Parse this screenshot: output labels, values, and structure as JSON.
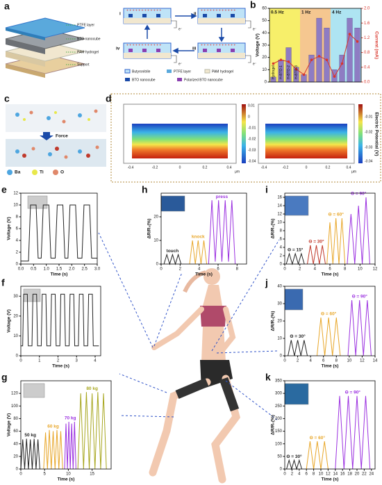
{
  "panels": {
    "a": {
      "panel": "a",
      "layers": [
        "PTFE layer",
        "BTO nanocube",
        "PAM hydrogel",
        "Support"
      ],
      "steps": [
        "i",
        "ii",
        "iii",
        "iv"
      ],
      "electron": "e⁻",
      "legend": [
        "Butyronitrile",
        "PTFE layer",
        "PAM hydrogel",
        "BTO nanocube",
        "Polarized BTO nanocube"
      ]
    },
    "c": {
      "panel": "c",
      "arrow": "Force",
      "legend": [
        "Ba",
        "Ti",
        "O"
      ]
    },
    "d": {
      "panel": "d",
      "colorbar_label": "Electric Potential (V)",
      "colorbar_ticks": [
        "0.01",
        "0",
        "-0.01",
        "-0.02",
        "-0.03",
        "-0.04"
      ],
      "x_ticks": [
        "-0.4",
        "-0.2",
        "0",
        "0.2",
        "0.4"
      ],
      "unit": "μm"
    }
  },
  "chart_data": [
    {
      "panel": "b",
      "type": "bar",
      "categories": [
        "Hydrogel",
        "H-BTO-1",
        "H-BTO-2",
        "H-BTO-3",
        null,
        null,
        null,
        null,
        null,
        null,
        null,
        null
      ],
      "regions": [
        {
          "label": "0.5 Hz",
          "color": "#f7ef6a"
        },
        {
          "label": "1 Hz",
          "color": "#f5c790"
        },
        {
          "label": "4 Hz",
          "color": "#aee4f2"
        }
      ],
      "series": [
        {
          "color": "#8e7cc3",
          "values": [
            4,
            18,
            28,
            12,
            6,
            22,
            52,
            44,
            10,
            22,
            52,
            44
          ]
        },
        {
          "color": "#d9352b",
          "axis": "y2",
          "values": [
            0.5,
            0.6,
            0.55,
            0.35,
            0.2,
            0.6,
            0.7,
            0.6,
            0.15,
            0.5,
            1.3,
            1.1
          ]
        }
      ],
      "ylabel": "Voltage (V)",
      "y2label": "Current (mA)",
      "ylim": [
        0,
        60
      ],
      "yticks": [
        0,
        10,
        20,
        30,
        40,
        50,
        60
      ],
      "y2lim": [
        0,
        2
      ],
      "y2ticks": [
        {
          "value": 0,
          "label": "0.0"
        },
        {
          "value": 0.4,
          "label": "0.4"
        },
        {
          "value": 0.8,
          "label": "0.8"
        },
        {
          "value": 1.2,
          "label": "1.2"
        },
        {
          "value": 1.6,
          "label": "1.6"
        },
        {
          "value": 2,
          "label": "2.0"
        }
      ]
    },
    {
      "panel": "e",
      "type": "line",
      "xlabel": "Time (s)",
      "ylabel": "Voltage (V)",
      "xlim": [
        0,
        3
      ],
      "ylim": [
        0,
        12
      ],
      "xticks": [
        {
          "value": 0,
          "label": "0.0"
        },
        {
          "value": 0.5,
          "label": "0.5"
        },
        {
          "value": 1,
          "label": "1.0"
        },
        {
          "value": 1.5,
          "label": "1.5"
        },
        {
          "value": 2,
          "label": "2.0"
        },
        {
          "value": 2.5,
          "label": "2.5"
        },
        {
          "value": 3,
          "label": "3.0"
        }
      ],
      "yticks": [
        0,
        2,
        4,
        6,
        8,
        10,
        12
      ],
      "series": [
        {
          "color": "#222222",
          "x": [
            0,
            0.3,
            0.38,
            0.6,
            0.68,
            0.8,
            0.88,
            1.1,
            1.18,
            1.35,
            1.43,
            1.65,
            1.73,
            1.85,
            1.93,
            2.15,
            2.23,
            2.4,
            2.48,
            2.7,
            2.78,
            3.0
          ],
          "values": [
            0.5,
            0.5,
            10,
            10,
            1,
            1,
            10,
            10,
            1,
            1,
            10,
            10,
            1,
            1,
            10,
            10,
            1,
            1,
            10,
            10,
            1,
            1
          ]
        }
      ]
    },
    {
      "panel": "f",
      "type": "line",
      "xlabel": "Time (s)",
      "ylabel": "Voltage (V)",
      "xlim": [
        0,
        4.3
      ],
      "ylim": [
        0,
        35
      ],
      "xticks": [
        0,
        1,
        2,
        3,
        4
      ],
      "yticks": [
        0,
        10,
        20,
        30
      ],
      "series": [
        {
          "color": "#222222",
          "x": [
            0,
            0.1,
            0.15,
            0.35,
            0.4,
            0.6,
            0.65,
            0.85,
            0.9,
            1.1,
            1.15,
            1.35,
            1.4,
            1.6,
            1.65,
            1.85,
            1.9,
            2.1,
            2.15,
            2.35,
            2.4,
            2.6,
            2.65,
            2.85,
            2.9,
            3.1,
            3.15,
            3.35,
            3.4,
            3.6,
            3.65,
            3.85,
            3.9,
            4.2
          ],
          "values": [
            5,
            5,
            31,
            31,
            5,
            5,
            31,
            31,
            5,
            5,
            31,
            31,
            5,
            5,
            31,
            31,
            5,
            5,
            31,
            31,
            5,
            5,
            31,
            31,
            5,
            5,
            31,
            31,
            5,
            5,
            31,
            31,
            5,
            5
          ]
        }
      ]
    },
    {
      "panel": "g",
      "type": "line",
      "xlabel": "Time (s)",
      "ylabel": "Voltage (V)",
      "xlim": [
        0,
        19
      ],
      "ylim": [
        0,
        140
      ],
      "xticks": [
        0,
        5,
        10,
        15
      ],
      "yticks": [
        0,
        20,
        40,
        60,
        80,
        100,
        120
      ],
      "series": [
        {
          "name": "50 kg",
          "color": "#222222",
          "x": [
            0,
            0.4,
            0.8,
            1.2,
            1.6,
            2.0,
            2.4,
            2.8,
            3.2,
            3.6,
            4.0
          ],
          "values": [
            0,
            47,
            0,
            48,
            0,
            47,
            0,
            48,
            0,
            47,
            0
          ]
        },
        {
          "name": "60 kg",
          "color": "#e8a628",
          "x": [
            4.8,
            5.2,
            5.6,
            6.0,
            6.4,
            6.8,
            7.2,
            7.6,
            8.0,
            8.4,
            8.8
          ],
          "values": [
            0,
            58,
            0,
            62,
            0,
            60,
            0,
            62,
            0,
            60,
            0
          ]
        },
        {
          "name": "70 kg",
          "color": "#9b30e0",
          "x": [
            9.2,
            9.5,
            9.8,
            10.1,
            10.4,
            10.7,
            11.0,
            11.3,
            11.6
          ],
          "values": [
            0,
            72,
            0,
            75,
            0,
            72,
            0,
            75,
            0
          ]
        },
        {
          "name": "80 kg",
          "color": "#a7a61e",
          "x": [
            12,
            12.6,
            13.2,
            13.8,
            14.4,
            15,
            15.6,
            16.2,
            16.8,
            17.4,
            18
          ],
          "values": [
            0,
            120,
            0,
            122,
            0,
            120,
            0,
            122,
            0,
            120,
            0
          ]
        }
      ]
    },
    {
      "panel": "h",
      "type": "line",
      "xlabel": "Time (s)",
      "ylabel": "ΔR/R₀(%)",
      "xlim": [
        0,
        9
      ],
      "ylim": [
        0,
        30
      ],
      "xticks": [
        0,
        2,
        4,
        6,
        8
      ],
      "yticks": [
        0,
        10,
        20
      ],
      "series": [
        {
          "name": "touch",
          "color": "#222222",
          "x": [
            0.3,
            0.6,
            0.9,
            1.2,
            1.5,
            1.8,
            2.1
          ],
          "values": [
            0,
            4,
            0,
            4,
            0,
            4,
            0
          ]
        },
        {
          "name": "knock",
          "color": "#e8a628",
          "x": [
            3.0,
            3.3,
            3.6,
            3.9,
            4.2,
            4.5,
            4.8
          ],
          "values": [
            0,
            10,
            0,
            10,
            0,
            10,
            0
          ]
        },
        {
          "name": "press",
          "color": "#9b30e0",
          "x": [
            5.0,
            5.35,
            5.7,
            6.05,
            6.4,
            6.75,
            7.1,
            7.45,
            7.8
          ],
          "values": [
            0,
            27,
            1,
            27,
            1,
            27,
            1,
            27,
            0
          ]
        }
      ]
    },
    {
      "panel": "i",
      "type": "line",
      "xlabel": "Time (s)",
      "ylabel": "ΔR/R₀(%)",
      "xlim": [
        0,
        12
      ],
      "ylim": [
        0,
        17
      ],
      "xticks": [
        0,
        2,
        4,
        6,
        8,
        10,
        12
      ],
      "yticks": [
        0,
        2,
        4,
        6,
        8,
        10,
        12,
        14,
        16
      ],
      "series": [
        {
          "name": "Θ = 15°",
          "color": "#222222",
          "x": [
            0.2,
            0.6,
            1.0,
            1.4,
            1.8,
            2.2,
            2.6
          ],
          "values": [
            0,
            2.5,
            0,
            2.5,
            0,
            2.5,
            0
          ]
        },
        {
          "name": "Θ = 30°",
          "color": "#c0392b",
          "x": [
            3.0,
            3.4,
            3.8,
            4.2,
            4.6,
            5.0,
            5.4
          ],
          "values": [
            0,
            4.5,
            0,
            4.5,
            0,
            4.5,
            0
          ]
        },
        {
          "name": "Θ = 60°",
          "color": "#e8a628",
          "x": [
            5.6,
            6.0,
            6.4,
            6.8,
            7.2,
            7.6,
            8.0
          ],
          "values": [
            0,
            10,
            0,
            11,
            0,
            11,
            0
          ]
        },
        {
          "name": "Θ = 90°",
          "color": "#9b30e0",
          "x": [
            8.3,
            8.8,
            9.3,
            9.8,
            10.3,
            10.8,
            11.3
          ],
          "values": [
            0,
            12,
            0,
            14,
            0,
            16,
            0
          ]
        }
      ]
    },
    {
      "panel": "j",
      "type": "line",
      "xlabel": "Time (s)",
      "ylabel": "ΔR/R₀(%)",
      "xlim": [
        0,
        14
      ],
      "ylim": [
        0,
        40
      ],
      "xticks": [
        0,
        2,
        4,
        6,
        8,
        10,
        12,
        14
      ],
      "yticks": [
        0,
        10,
        20,
        30,
        40
      ],
      "series": [
        {
          "name": "Θ = 30°",
          "color": "#222222",
          "x": [
            0.5,
            1.0,
            1.5,
            2.0,
            2.5,
            3.0,
            3.5
          ],
          "values": [
            0,
            9,
            0,
            9,
            0,
            9,
            0
          ]
        },
        {
          "name": "Θ = 60°",
          "color": "#e8a628",
          "x": [
            5.0,
            5.6,
            6.2,
            6.8,
            7.4,
            8.0,
            8.6
          ],
          "values": [
            0,
            22,
            0,
            22,
            0,
            22,
            0
          ]
        },
        {
          "name": "Θ = 90°",
          "color": "#9b30e0",
          "x": [
            9.8,
            10.4,
            11.0,
            11.6,
            12.2,
            12.8,
            13.4
          ],
          "values": [
            0,
            32,
            0,
            32,
            0,
            32,
            0
          ]
        }
      ]
    },
    {
      "panel": "k",
      "type": "line",
      "xlabel": "Time (s)",
      "ylabel": "ΔR/R₀(%)",
      "xlim": [
        0,
        25
      ],
      "ylim": [
        0,
        350
      ],
      "xticks": [
        0,
        2,
        4,
        6,
        8,
        10,
        12,
        14,
        16,
        18,
        20,
        22,
        24
      ],
      "yticks": [
        0,
        50,
        100,
        150,
        200,
        250,
        300,
        350
      ],
      "series": [
        {
          "name": "Θ = 30°",
          "color": "#222222",
          "x": [
            0.5,
            1.2,
            1.9,
            2.6,
            3.3,
            4.0,
            4.7
          ],
          "values": [
            0,
            35,
            0,
            35,
            0,
            35,
            0
          ]
        },
        {
          "name": "Θ = 60°",
          "color": "#e8a628",
          "x": [
            6.0,
            7.0,
            8.0,
            9.0,
            10.0,
            11.0,
            12.0
          ],
          "values": [
            0,
            110,
            0,
            110,
            0,
            110,
            0
          ]
        },
        {
          "name": "Θ = 90°",
          "color": "#9b30e0",
          "x": [
            14,
            15.2,
            16.4,
            17.6,
            18.8,
            20,
            21.2,
            22.4,
            23.6
          ],
          "values": [
            0,
            290,
            0,
            290,
            0,
            290,
            0,
            290,
            0
          ]
        }
      ]
    }
  ]
}
